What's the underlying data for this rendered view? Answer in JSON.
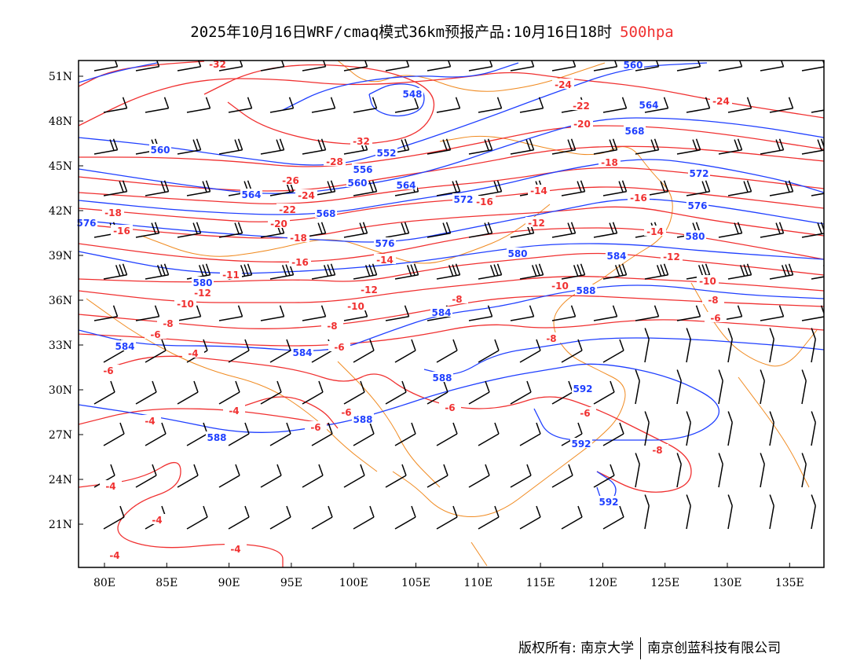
{
  "title": {
    "text": "2025年10月16日WRF/cmaq模式36km预报产品:10月16日18时",
    "level": "500hpa"
  },
  "axes": {
    "lat_labels": [
      "51N",
      "48N",
      "45N",
      "42N",
      "39N",
      "36N",
      "33N",
      "30N",
      "27N",
      "24N",
      "21N"
    ],
    "lon_labels": [
      "80E",
      "85E",
      "90E",
      "95E",
      "100E",
      "105E",
      "110E",
      "115E",
      "120E",
      "125E",
      "130E",
      "135E"
    ]
  },
  "colors": {
    "height": "#1f3fff",
    "temperature": "#f03030",
    "border": "#f08a20",
    "wind": "#000000"
  },
  "height_labels": [
    "548",
    "552",
    "556",
    "560",
    "560",
    "564",
    "564",
    "564",
    "568",
    "568",
    "572",
    "572",
    "576",
    "576",
    "576",
    "580",
    "580",
    "580",
    "584",
    "584",
    "584",
    "584",
    "588",
    "588",
    "588",
    "588",
    "592",
    "592",
    "592",
    "560"
  ],
  "temperature_labels": [
    "-32",
    "-32",
    "-28",
    "-26",
    "-24",
    "-22",
    "-20",
    "-18",
    "-16",
    "-18",
    "-16",
    "-14",
    "-12",
    "-10",
    "-11",
    "-12",
    "-10",
    "-8",
    "-8",
    "-6",
    "-6",
    "-4",
    "-4",
    "-4",
    "-6",
    "-6",
    "-6",
    "-4",
    "-4",
    "-4",
    "-4",
    "-24",
    "-22",
    "-20",
    "-18",
    "-16",
    "-14",
    "-16",
    "-12",
    "-14",
    "-12",
    "-10",
    "-10",
    "-8",
    "-8",
    "-6",
    "-8",
    "-6",
    "-6",
    "-8",
    "-24"
  ],
  "footer": {
    "copyright": "版权所有: 南京大学",
    "company": "南京创蓝科技有限公司"
  }
}
